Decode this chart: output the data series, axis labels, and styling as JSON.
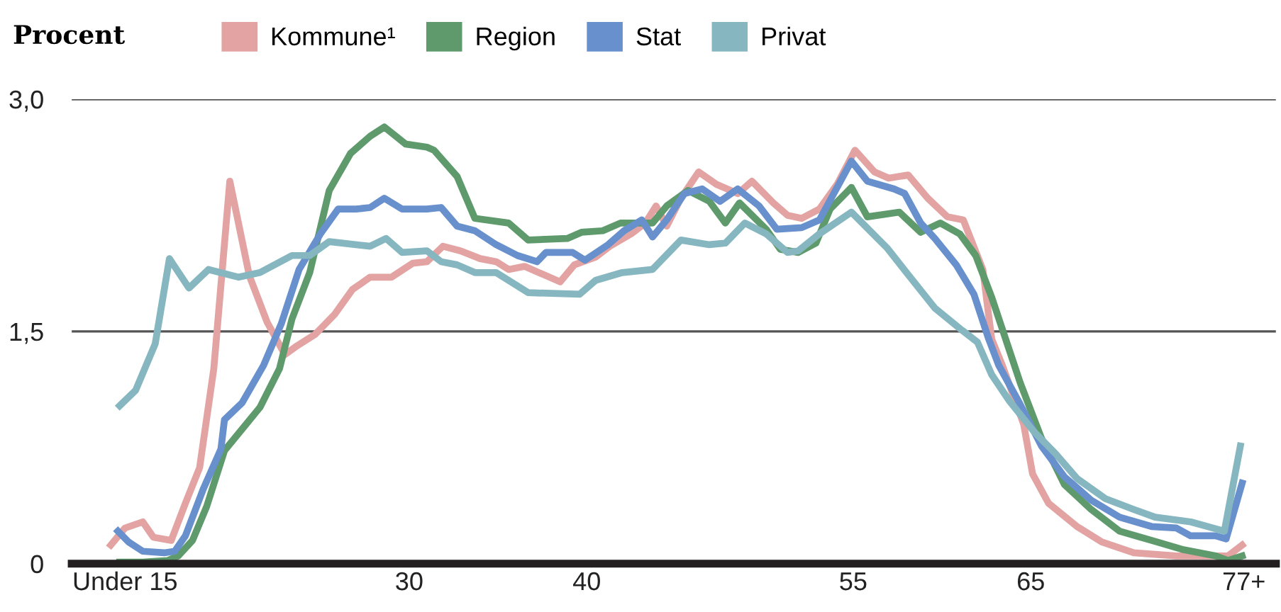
{
  "chart_data": {
    "type": "line",
    "ylabel": "Procent",
    "legend": "top left",
    "grid": "y",
    "line_style": "solid",
    "marker": "none",
    "xlim": [
      11.0,
      78.8
    ],
    "ylim": [
      0,
      3.0
    ],
    "xticks": [
      {
        "value": 14,
        "label": "Under 15"
      },
      30,
      40,
      55,
      65,
      {
        "value": 77,
        "label": "77+"
      }
    ],
    "yticks": [
      {
        "value": 0,
        "label": "0"
      },
      {
        "value": 1.5,
        "label": "1,5"
      },
      {
        "value": 3.0,
        "label": "3,0"
      }
    ],
    "series": [
      {
        "name": "Kommune¹",
        "color": "#e2a3a2",
        "x": [
          13.2,
          14.0,
          15.0,
          15.6,
          16.6,
          17.4,
          18.2,
          19.0,
          19.9,
          21.0,
          22.0,
          23.0,
          23.6,
          24.7,
          25.8,
          26.8,
          27.8,
          29.0,
          30.2,
          31.0,
          31.9,
          32.9,
          34.0,
          34.9,
          35.6,
          36.5,
          38.5,
          39.3,
          40.5,
          41.3,
          42.5,
          43.3,
          43.9,
          44.5,
          45.3,
          46.3,
          47.3,
          48.5,
          49.3,
          50.5,
          51.3,
          52.1,
          53.1,
          54.1,
          55.1,
          56.2,
          57.0,
          58.1,
          59.2,
          60.3,
          61.2,
          62.3,
          62.8,
          63.4,
          64.6,
          65.1,
          66.0,
          67.6,
          69.0,
          70.8,
          73.2,
          75.6,
          76.1,
          76.9
        ],
        "values": [
          0.12,
          0.23,
          0.27,
          0.17,
          0.15,
          0.39,
          0.62,
          1.26,
          2.47,
          1.86,
          1.56,
          1.35,
          1.4,
          1.48,
          1.61,
          1.77,
          1.85,
          1.85,
          1.94,
          1.95,
          2.05,
          2.02,
          1.97,
          1.95,
          1.9,
          1.92,
          1.82,
          1.93,
          1.98,
          2.05,
          2.13,
          2.2,
          2.31,
          2.18,
          2.36,
          2.53,
          2.45,
          2.39,
          2.47,
          2.33,
          2.25,
          2.23,
          2.29,
          2.45,
          2.67,
          2.53,
          2.49,
          2.51,
          2.36,
          2.24,
          2.22,
          1.9,
          1.45,
          1.28,
          0.9,
          0.58,
          0.39,
          0.24,
          0.14,
          0.07,
          0.05,
          0.05,
          0.05,
          0.12
        ]
      },
      {
        "name": "Region",
        "color": "#5e9a6b",
        "x": [
          13.7,
          15.0,
          16.4,
          17.0,
          17.8,
          18.6,
          19.6,
          20.6,
          21.6,
          22.7,
          23.4,
          24.4,
          25.5,
          26.7,
          27.8,
          28.6,
          29.8,
          31.0,
          31.4,
          32.7,
          33.7,
          35.6,
          36.7,
          38.9,
          39.7,
          40.9,
          41.9,
          42.8,
          43.7,
          44.5,
          45.7,
          46.9,
          47.8,
          48.6,
          50.1,
          50.9,
          51.9,
          52.9,
          53.7,
          54.9,
          55.8,
          57.6,
          58.8,
          59.9,
          61.0,
          61.9,
          62.8,
          64.4,
          65.6,
          66.9,
          68.4,
          70.0,
          71.8,
          73.6,
          75.4,
          76.1,
          76.9
        ],
        "values": [
          0.01,
          0.01,
          0.02,
          0.05,
          0.15,
          0.37,
          0.73,
          0.87,
          1.01,
          1.26,
          1.58,
          1.88,
          2.41,
          2.65,
          2.76,
          2.82,
          2.71,
          2.69,
          2.67,
          2.5,
          2.23,
          2.2,
          2.09,
          2.1,
          2.14,
          2.15,
          2.2,
          2.2,
          2.2,
          2.31,
          2.41,
          2.34,
          2.2,
          2.33,
          2.16,
          2.03,
          2.01,
          2.07,
          2.29,
          2.43,
          2.24,
          2.27,
          2.14,
          2.2,
          2.13,
          1.99,
          1.72,
          1.17,
          0.81,
          0.51,
          0.35,
          0.21,
          0.15,
          0.09,
          0.05,
          0.02,
          0.05
        ]
      },
      {
        "name": "Stat",
        "color": "#6790cc",
        "x": [
          13.6,
          14.2,
          15.0,
          16.2,
          16.8,
          17.4,
          18.4,
          19.4,
          19.6,
          20.6,
          21.8,
          22.8,
          23.8,
          25.0,
          26.0,
          27.0,
          27.8,
          28.6,
          29.6,
          31.0,
          31.8,
          32.7,
          33.7,
          34.9,
          36.1,
          37.2,
          37.7,
          39.2,
          39.9,
          41.2,
          42.1,
          43.1,
          43.7,
          44.5,
          45.5,
          46.5,
          47.5,
          48.5,
          49.7,
          50.7,
          52.1,
          53.1,
          54.9,
          55.8,
          57.3,
          57.9,
          58.8,
          59.6,
          60.8,
          61.8,
          62.6,
          63.2,
          64.4,
          65.6,
          66.9,
          68.4,
          70.0,
          71.8,
          73.2,
          74.0,
          75.4,
          76.0,
          76.9
        ],
        "values": [
          0.21,
          0.14,
          0.08,
          0.07,
          0.08,
          0.18,
          0.48,
          0.74,
          0.93,
          1.04,
          1.28,
          1.55,
          1.9,
          2.13,
          2.29,
          2.29,
          2.3,
          2.36,
          2.29,
          2.29,
          2.3,
          2.18,
          2.15,
          2.06,
          1.99,
          1.95,
          2.01,
          2.01,
          1.96,
          2.06,
          2.15,
          2.22,
          2.11,
          2.22,
          2.39,
          2.42,
          2.34,
          2.42,
          2.31,
          2.16,
          2.17,
          2.22,
          2.6,
          2.47,
          2.42,
          2.39,
          2.2,
          2.1,
          1.93,
          1.74,
          1.46,
          1.28,
          1.03,
          0.76,
          0.56,
          0.41,
          0.3,
          0.24,
          0.23,
          0.18,
          0.18,
          0.16,
          0.52
        ]
      },
      {
        "name": "Privat",
        "color": "#86b7c0",
        "x": [
          13.7,
          14.6,
          15.7,
          16.5,
          17.6,
          18.7,
          20.4,
          21.6,
          23.4,
          24.4,
          25.5,
          27.8,
          28.7,
          29.6,
          31.0,
          31.8,
          32.7,
          33.7,
          34.9,
          36.7,
          39.6,
          40.5,
          42.0,
          43.7,
          45.3,
          46.9,
          47.8,
          48.9,
          50.1,
          51.3,
          51.9,
          53.1,
          54.9,
          56.9,
          58.0,
          59.6,
          61.1,
          62.0,
          62.8,
          63.8,
          65.2,
          66.4,
          67.6,
          69.2,
          70.8,
          72.0,
          74.0,
          75.9,
          76.8
        ],
        "values": [
          1.02,
          1.12,
          1.42,
          1.97,
          1.78,
          1.9,
          1.85,
          1.88,
          1.99,
          1.99,
          2.08,
          2.05,
          2.1,
          2.01,
          2.02,
          1.95,
          1.93,
          1.88,
          1.88,
          1.75,
          1.74,
          1.83,
          1.88,
          1.9,
          2.09,
          2.06,
          2.07,
          2.2,
          2.13,
          2.01,
          2.02,
          2.13,
          2.27,
          2.04,
          1.88,
          1.65,
          1.51,
          1.43,
          1.22,
          1.05,
          0.85,
          0.71,
          0.55,
          0.42,
          0.35,
          0.3,
          0.27,
          0.21,
          0.76
        ]
      }
    ]
  }
}
